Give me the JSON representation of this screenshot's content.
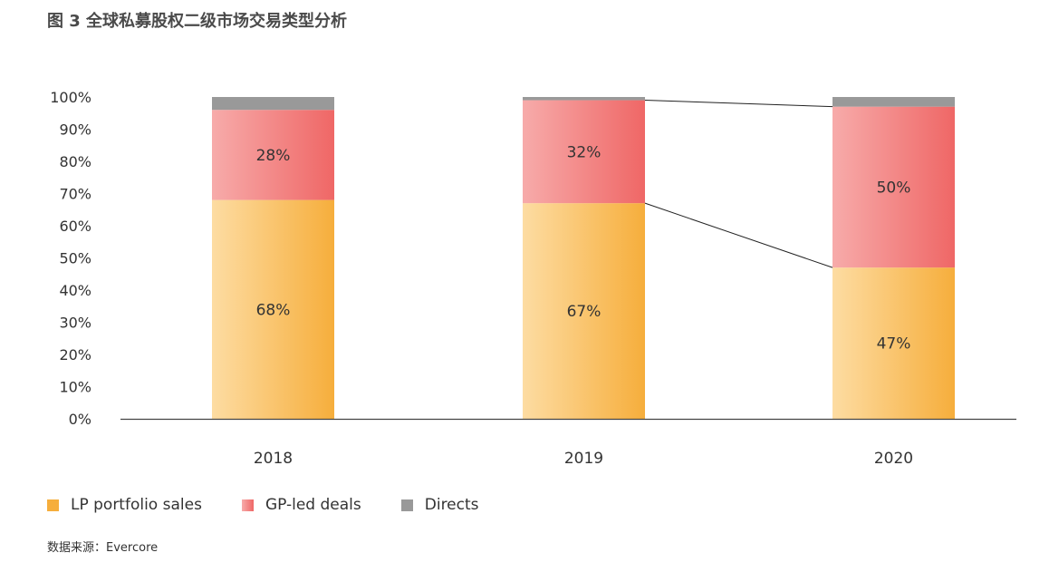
{
  "title": "图 3 全球私募股权二级市场交易类型分析",
  "source": "数据来源：Evercore",
  "colors": {
    "lp_light": "#fddca2",
    "lp_dark": "#f6ae3c",
    "gp_light": "#f7abaa",
    "gp_dark": "#ef6766",
    "directs": "#999999",
    "axis": "#444444",
    "connector": "#222222"
  },
  "chart_data": {
    "type": "bar",
    "stacked": true,
    "categories": [
      "2018",
      "2019",
      "2020"
    ],
    "series": [
      {
        "name": "LP portfolio sales",
        "values": [
          68,
          67,
          47
        ],
        "labels": [
          "68%",
          "67%",
          "47%"
        ]
      },
      {
        "name": "GP-led deals",
        "values": [
          28,
          32,
          50
        ],
        "labels": [
          "28%",
          "32%",
          "50%"
        ]
      },
      {
        "name": "Directs",
        "values": [
          4,
          1,
          3
        ],
        "labels": [
          "",
          "",
          ""
        ]
      }
    ],
    "y_ticks": [
      "0%",
      "10%",
      "20%",
      "30%",
      "40%",
      "50%",
      "60%",
      "70%",
      "80%",
      "90%",
      "100%"
    ],
    "ylim": [
      0,
      100
    ],
    "legend_position": "bottom-left",
    "grid": false
  },
  "legend": [
    {
      "label": "LP portfolio sales"
    },
    {
      "label": "GP-led deals"
    },
    {
      "label": "Directs"
    }
  ]
}
